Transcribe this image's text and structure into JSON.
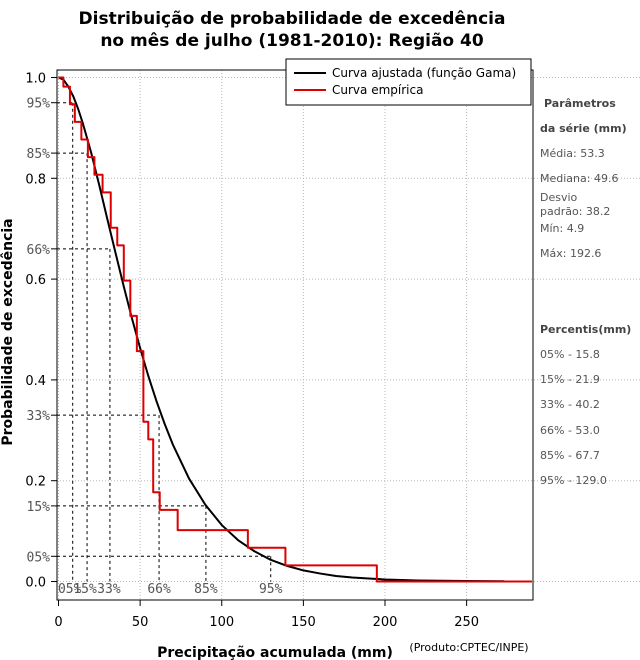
{
  "chart_data": {
    "type": "line",
    "title_line1": "Distribuição de probabilidade de excedência",
    "title_line2": "no mês de julho (1981-2010): Região 40",
    "xlabel": "Precipitação acumulada (mm)",
    "ylabel": "Probabilidade de excedência",
    "credit": "(Produto:CPTEC/INPE)",
    "xlim": [
      0,
      290
    ],
    "ylim": [
      -0.03,
      1.02
    ],
    "x_ticks": [
      0,
      50,
      100,
      150,
      200,
      250
    ],
    "x_tick_labels": [
      "0",
      "50",
      "100",
      "150",
      "200",
      "250"
    ],
    "y_ticks": [
      0.0,
      0.2,
      0.4,
      0.6,
      0.8,
      1.0
    ],
    "y_tick_labels": [
      "0.0",
      "0.2",
      "0.4",
      "0.6",
      "0.8",
      "1.0"
    ],
    "grid": true,
    "legend_position": "top-right",
    "series": [
      {
        "name": "Curva ajustada (função Gama)",
        "color": "#000000",
        "x": [
          0,
          3,
          6,
          9,
          12,
          15,
          20,
          25,
          30,
          35,
          40,
          45,
          50,
          55,
          60,
          65,
          70,
          80,
          90,
          100,
          110,
          120,
          130,
          140,
          150,
          160,
          170,
          180,
          190,
          200,
          220,
          250,
          273
        ],
        "y": [
          1.0,
          0.996,
          0.982,
          0.963,
          0.938,
          0.908,
          0.851,
          0.786,
          0.718,
          0.651,
          0.585,
          0.522,
          0.463,
          0.408,
          0.358,
          0.313,
          0.272,
          0.204,
          0.152,
          0.112,
          0.082,
          0.06,
          0.043,
          0.031,
          0.022,
          0.016,
          0.011,
          0.008,
          0.006,
          0.004,
          0.002,
          0.001,
          0.0005
        ]
      },
      {
        "name": "Curva empírica",
        "color": "#dd0000",
        "x": [
          0,
          3,
          3,
          7,
          7,
          10,
          10,
          14,
          14,
          18,
          18,
          22,
          22,
          27,
          27,
          32,
          32,
          36,
          36,
          40,
          40,
          44,
          44,
          48,
          48,
          52,
          52,
          55,
          55,
          58,
          58,
          62,
          62,
          73,
          73,
          116,
          116,
          139,
          139,
          195,
          195,
          290
        ],
        "y": [
          1.0,
          1.0,
          0.982,
          0.982,
          0.947,
          0.947,
          0.912,
          0.912,
          0.877,
          0.877,
          0.842,
          0.842,
          0.807,
          0.807,
          0.772,
          0.772,
          0.702,
          0.702,
          0.667,
          0.667,
          0.597,
          0.597,
          0.527,
          0.527,
          0.457,
          0.457,
          0.317,
          0.317,
          0.282,
          0.282,
          0.177,
          0.177,
          0.142,
          0.142,
          0.102,
          0.102,
          0.067,
          0.067,
          0.032,
          0.032,
          0.0,
          0.0
        ]
      }
    ],
    "percentile_probabilities": [
      0.95,
      0.85,
      0.66,
      0.33,
      0.15,
      0.05
    ],
    "percentile_labels_y": [
      "95%",
      "85%",
      "66%",
      "33%",
      "15%",
      "05%"
    ],
    "percentile_x_values": [
      8.7,
      17.5,
      31.5,
      61.6,
      90.3,
      130.0
    ],
    "percentile_labels_x": [
      "05%",
      "15%",
      "33%",
      "66%",
      "85%",
      "95%"
    ]
  },
  "side_panel": {
    "params_title_1": "Parâmetros",
    "params_title_2": "da série (mm)",
    "media": "Média: 53.3",
    "mediana": "Mediana: 49.6",
    "desvio_1": "Desvio",
    "desvio_2": "padrão: 38.2",
    "min": "Mín: 4.9",
    "max": "Máx: 192.6",
    "percentis_title": "Percentis(mm)",
    "percentis": [
      "05% - 15.8",
      "15% - 21.9",
      "33% - 40.2",
      "66% - 53.0",
      "85% - 67.7",
      "95% - 129.0"
    ]
  }
}
